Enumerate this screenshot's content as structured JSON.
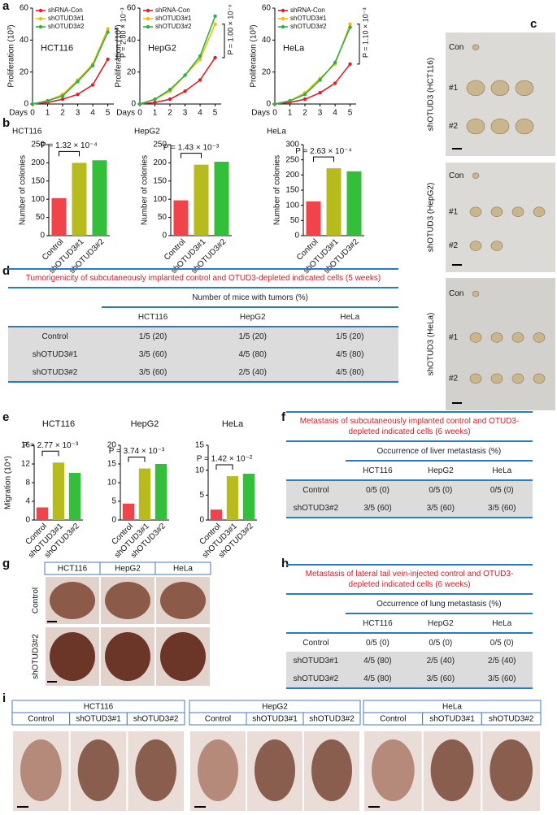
{
  "panel_labels": [
    "a",
    "b",
    "c",
    "d",
    "e",
    "f",
    "g",
    "h",
    "i"
  ],
  "chart_data": [
    {
      "type": "line",
      "subtitle": "HCT116",
      "x": [
        0,
        1,
        2,
        3,
        4,
        5
      ],
      "xlim": [
        0,
        5.4
      ],
      "xticks": [
        0,
        1,
        2,
        3,
        4,
        5
      ],
      "xlabel": "Days",
      "ylabel": "Proliferation (10³)",
      "ylim": [
        0,
        60
      ],
      "yticks": [
        0,
        20,
        40,
        60
      ],
      "annotation": "P = 2.80 × 10⁻³",
      "series": [
        {
          "name": "shRNA-Con",
          "color": "#e41e26",
          "values": [
            0,
            1,
            3,
            6,
            12,
            28
          ]
        },
        {
          "name": "shOTUD3#1",
          "color": "#f3bd00",
          "values": [
            0,
            2,
            6,
            15,
            25,
            47
          ]
        },
        {
          "name": "shOTUD3#2",
          "color": "#2fb04a",
          "values": [
            0,
            2,
            5,
            14,
            24,
            45
          ]
        }
      ]
    },
    {
      "type": "line",
      "subtitle": "HepG2",
      "x": [
        0,
        1,
        2,
        3,
        4,
        5
      ],
      "xlim": [
        0,
        5.4
      ],
      "xticks": [
        0,
        1,
        2,
        3,
        4,
        5
      ],
      "xlabel": "Days",
      "ylabel": "Proliferation (10³)",
      "ylim": [
        0,
        60
      ],
      "yticks": [
        0,
        20,
        40,
        60
      ],
      "annotation": "P = 1.00 × 10⁻⁶",
      "series": [
        {
          "name": "shRNA-Con",
          "color": "#e41e26",
          "values": [
            0,
            1,
            3,
            8,
            15,
            29
          ]
        },
        {
          "name": "shOTUD3#1",
          "color": "#f3bd00",
          "values": [
            0,
            3,
            8,
            18,
            28,
            50
          ]
        },
        {
          "name": "shOTUD3#2",
          "color": "#2fb04a",
          "values": [
            0,
            3,
            9,
            18,
            30,
            55
          ]
        }
      ]
    },
    {
      "type": "line",
      "subtitle": "HeLa",
      "x": [
        0,
        1,
        2,
        3,
        4,
        5
      ],
      "xlim": [
        0,
        5.4
      ],
      "xticks": [
        0,
        1,
        2,
        3,
        4,
        5
      ],
      "xlabel": "Days",
      "ylabel": "Proliferation (10³)",
      "ylim": [
        0,
        60
      ],
      "yticks": [
        0,
        20,
        40,
        60
      ],
      "annotation": "P = 1.10 × 10⁻³",
      "series": [
        {
          "name": "shRNA-Con",
          "color": "#e41e26",
          "values": [
            0,
            1,
            3,
            7,
            13,
            25
          ]
        },
        {
          "name": "shOTUD3#1",
          "color": "#f3bd00",
          "values": [
            0,
            2,
            7,
            16,
            25,
            50
          ]
        },
        {
          "name": "shOTUD3#2",
          "color": "#2fb04a",
          "values": [
            0,
            2,
            6,
            15,
            26,
            48
          ]
        }
      ]
    },
    {
      "type": "bar",
      "subtitle": "HCT116",
      "categories": [
        "Control",
        "shOTUD3#1",
        "shOTUD3#2"
      ],
      "values": [
        103,
        200,
        207
      ],
      "colors": [
        "#f0444a",
        "#b8bb1e",
        "#33bf3a"
      ],
      "ylabel": "Number of colonies",
      "ylim": [
        0,
        250
      ],
      "yticks": [
        0,
        50,
        100,
        150,
        200,
        250
      ],
      "annotation": "P = 1.32 × 10⁻⁴"
    },
    {
      "type": "bar",
      "subtitle": "HepG2",
      "categories": [
        "Control",
        "shOTUD3#1",
        "shOTUD3#2"
      ],
      "values": [
        97,
        195,
        203
      ],
      "colors": [
        "#f0444a",
        "#b8bb1e",
        "#33bf3a"
      ],
      "ylabel": "Number of colonies",
      "ylim": [
        0,
        250
      ],
      "yticks": [
        0,
        50,
        100,
        150,
        200,
        250
      ],
      "annotation": "P = 1.43 × 10⁻³"
    },
    {
      "type": "bar",
      "subtitle": "HeLa",
      "categories": [
        "Control",
        "shOTUD3#1",
        "shOTUD3#2"
      ],
      "values": [
        113,
        222,
        212
      ],
      "colors": [
        "#f0444a",
        "#b8bb1e",
        "#33bf3a"
      ],
      "ylabel": "Number of colonies",
      "ylim": [
        0,
        300
      ],
      "yticks": [
        0,
        50,
        100,
        150,
        200,
        250,
        300
      ],
      "annotation": "P = 2.63 × 10⁻⁴"
    },
    {
      "type": "bar",
      "subtitle": "HCT116",
      "categories": [
        "Control",
        "shOTUD3#1",
        "shOTUD3#2"
      ],
      "values": [
        2.7,
        12.3,
        10.1
      ],
      "colors": [
        "#f0444a",
        "#b8bb1e",
        "#33bf3a"
      ],
      "ylabel": "Migration (10⁴)",
      "ylim": [
        0,
        16
      ],
      "yticks": [
        0,
        4,
        8,
        12,
        16
      ],
      "annotation": "P = 2.77 × 10⁻³"
    },
    {
      "type": "bar",
      "subtitle": "HepG2",
      "categories": [
        "Control",
        "shOTUD3#1",
        "shOTUD3#2"
      ],
      "values": [
        4.4,
        13.8,
        15.0
      ],
      "colors": [
        "#f0444a",
        "#b8bb1e",
        "#33bf3a"
      ],
      "ylim": [
        0,
        20
      ],
      "yticks": [
        0,
        5,
        10,
        15,
        20
      ],
      "annotation": "P = 3.74 × 10⁻³"
    },
    {
      "type": "bar",
      "subtitle": "HeLa",
      "categories": [
        "Control",
        "shOTUD3#1",
        "shOTUD3#2"
      ],
      "values": [
        2.1,
        8.8,
        9.3
      ],
      "colors": [
        "#f0444a",
        "#b8bb1e",
        "#33bf3a"
      ],
      "ylim": [
        0,
        15
      ],
      "yticks": [
        0,
        5,
        10,
        15
      ],
      "annotation": "P = 1.42 × 10⁻²"
    }
  ],
  "xenograft_photos": [
    {
      "label": "shOTUD3 (HCT116)",
      "rows": [
        "Con",
        "#1",
        "#2"
      ]
    },
    {
      "label": "shOTUD3 (HepG2)",
      "rows": [
        "Con",
        "#1",
        "#2"
      ]
    },
    {
      "label": "shOTUD3 (HeLa)",
      "rows": [
        "Con",
        "#1",
        "#2"
      ]
    }
  ],
  "tumorigenicity_table": {
    "title": "Tumorigenicity of subcutaneously implanted control and OTUD3-depleted indicated cells (5 weeks)",
    "header": "Number of mice with tumors (%)",
    "columns": [
      "HCT116",
      "HepG2",
      "HeLa"
    ],
    "rows": [
      [
        "Control",
        "1/5 (20)",
        "1/5 (20)",
        "1/5 (20)"
      ],
      [
        "shOTUD3#1",
        "3/5 (60)",
        "4/5 (80)",
        "4/5 (80)"
      ],
      [
        "shOTUD3#2",
        "3/5 (60)",
        "2/5 (40)",
        "4/5 (80)"
      ]
    ]
  },
  "liver_metastasis_table": {
    "title": "Metastasis of subcutaneously implanted control and OTUD3-depleted indicated cells (6 weeks)",
    "header": "Occurrence of liver metastasis (%)",
    "columns": [
      "HCT116",
      "HepG2",
      "HeLa"
    ],
    "rows": [
      [
        "Control",
        "0/5 (0)",
        "0/5 (0)",
        "0/5 (0)"
      ],
      [
        "shOTUD3#2",
        "3/5 (60)",
        "3/5 (60)",
        "3/5 (60)"
      ]
    ]
  },
  "liver_photos": {
    "columns": [
      "HCT116",
      "HepG2",
      "HeLa"
    ],
    "rows": [
      "Control",
      "shOTUD3#2"
    ]
  },
  "lung_metastasis_table": {
    "title": "Metastasis of lateral tail vein-injected control and OTUD3-depleted indicated cells (6 weeks)",
    "header": "Occurrence of lung metastasis (%)",
    "columns": [
      "HCT116",
      "HepG2",
      "HeLa"
    ],
    "rows": [
      [
        "Control",
        "0/5 (0)",
        "0/5 (0)",
        "0/5 (0)"
      ],
      [
        "shOTUD3#1",
        "4/5 (80)",
        "2/5 (40)",
        "2/5 (40)"
      ],
      [
        "shOTUD3#2",
        "4/5 (80)",
        "3/5 (60)",
        "3/5 (60)"
      ]
    ]
  },
  "lung_photos": [
    {
      "label": "HCT116",
      "columns": [
        "Control",
        "shOTUD3#1",
        "shOTUD3#2"
      ]
    },
    {
      "label": "HepG2",
      "columns": [
        "Control",
        "shOTUD3#1",
        "shOTUD3#2"
      ]
    },
    {
      "label": "HeLa",
      "columns": [
        "Control",
        "shOTUD3#1",
        "shOTUD3#2"
      ]
    }
  ]
}
